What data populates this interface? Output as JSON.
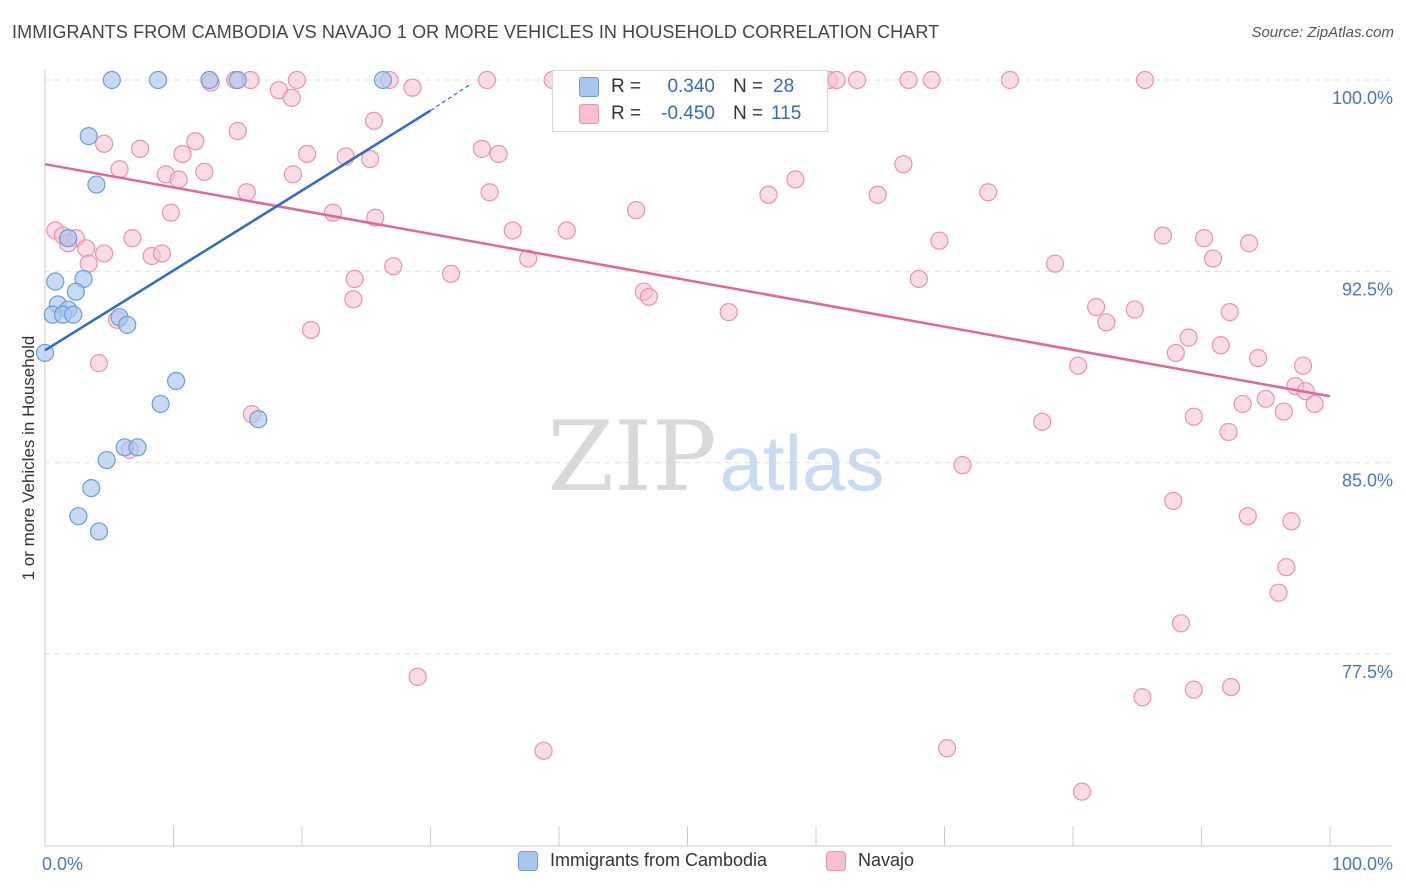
{
  "header": {
    "title": "IMMIGRANTS FROM CAMBODIA VS NAVAJO 1 OR MORE VEHICLES IN HOUSEHOLD CORRELATION CHART",
    "source": "Source: ZipAtlas.com"
  },
  "colors": {
    "blue_fill": "#a9c6ee",
    "blue_stroke": "#6f9bd8",
    "blue_line": "#2f6cc8",
    "pink_fill": "#f7bfd2",
    "pink_stroke": "#e992b1",
    "pink_line": "#e0679a",
    "tick_text": "#4a76c9",
    "grid": "#dddddd"
  },
  "stats": {
    "r_label": "R =",
    "n_label": "N =",
    "series1": {
      "r": "0.340",
      "n": "28"
    },
    "series2": {
      "r": "-0.450",
      "n": "115"
    }
  },
  "watermark": {
    "zip": "ZIP",
    "atlas": "atlas"
  },
  "chart_data": {
    "type": "scatter",
    "title": "IMMIGRANTS FROM CAMBODIA VS NAVAJO 1 OR MORE VEHICLES IN HOUSEHOLD CORRELATION CHART",
    "xlabel": "",
    "ylabel": "1 or more Vehicles in Household",
    "x_unit": "percent",
    "xlim": [
      0,
      100
    ],
    "ylim": [
      70.4,
      101.5
    ],
    "x_tick_labels": [
      "0.0%",
      "100.0%"
    ],
    "y_ticks": [
      100.0,
      92.5,
      85.0,
      77.5
    ],
    "y_tick_labels": [
      "100.0%",
      "92.5%",
      "85.0%",
      "77.5%"
    ],
    "legend": [
      "Immigrants from Cambodia",
      "Navajo"
    ],
    "series": [
      {
        "name": "Immigrants from Cambodia",
        "r": 0.34,
        "n": 28,
        "trend": {
          "x": [
            0,
            30
          ],
          "y": [
            89.4,
            98.8
          ],
          "dashed_to": [
            33,
            99.8
          ]
        },
        "points": [
          [
            5.2,
            100.0
          ],
          [
            8.8,
            100.0
          ],
          [
            12.8,
            100.0
          ],
          [
            15.0,
            100.0
          ],
          [
            26.3,
            100.0
          ],
          [
            3.4,
            97.8
          ],
          [
            4.0,
            95.9
          ],
          [
            1.8,
            93.8
          ],
          [
            0.8,
            92.1
          ],
          [
            3.0,
            92.2
          ],
          [
            2.4,
            91.7
          ],
          [
            1.0,
            91.2
          ],
          [
            1.8,
            91.0
          ],
          [
            0.6,
            90.8
          ],
          [
            1.4,
            90.8
          ],
          [
            2.2,
            90.8
          ],
          [
            5.8,
            90.7
          ],
          [
            6.4,
            90.4
          ],
          [
            0.0,
            89.3
          ],
          [
            10.2,
            88.2
          ],
          [
            9.0,
            87.3
          ],
          [
            16.6,
            86.7
          ],
          [
            6.2,
            85.6
          ],
          [
            7.2,
            85.6
          ],
          [
            4.8,
            85.1
          ],
          [
            3.6,
            84.0
          ],
          [
            2.6,
            82.9
          ],
          [
            4.2,
            82.3
          ]
        ]
      },
      {
        "name": "Navajo",
        "r": -0.45,
        "n": 115,
        "trend": {
          "x": [
            0,
            100
          ],
          "y": [
            96.7,
            87.6
          ]
        },
        "points": [
          [
            14.8,
            100.0
          ],
          [
            16.0,
            100.0
          ],
          [
            19.6,
            100.0
          ],
          [
            26.8,
            100.0
          ],
          [
            34.4,
            100.0
          ],
          [
            39.5,
            100.0
          ],
          [
            40.8,
            100.0
          ],
          [
            41.8,
            100.0
          ],
          [
            45.2,
            100.0
          ],
          [
            53.2,
            100.0
          ],
          [
            56.6,
            100.0
          ],
          [
            57.6,
            100.0
          ],
          [
            61.0,
            100.0
          ],
          [
            61.6,
            100.0
          ],
          [
            63.2,
            100.0
          ],
          [
            67.2,
            100.0
          ],
          [
            69.0,
            100.0
          ],
          [
            75.1,
            100.0
          ],
          [
            85.6,
            100.0
          ],
          [
            12.9,
            99.9
          ],
          [
            28.6,
            99.7
          ],
          [
            18.2,
            99.6
          ],
          [
            19.2,
            99.3
          ],
          [
            25.6,
            98.4
          ],
          [
            15.0,
            98.0
          ],
          [
            11.7,
            97.6
          ],
          [
            4.6,
            97.5
          ],
          [
            7.4,
            97.3
          ],
          [
            34.0,
            97.3
          ],
          [
            10.7,
            97.1
          ],
          [
            20.4,
            97.1
          ],
          [
            35.3,
            97.1
          ],
          [
            23.4,
            97.0
          ],
          [
            25.3,
            96.9
          ],
          [
            66.8,
            96.7
          ],
          [
            5.8,
            96.5
          ],
          [
            12.4,
            96.4
          ],
          [
            9.4,
            96.3
          ],
          [
            19.3,
            96.3
          ],
          [
            58.4,
            96.1
          ],
          [
            10.4,
            96.1
          ],
          [
            15.7,
            95.6
          ],
          [
            34.6,
            95.6
          ],
          [
            56.3,
            95.5
          ],
          [
            64.8,
            95.5
          ],
          [
            73.4,
            95.6
          ],
          [
            9.8,
            94.8
          ],
          [
            22.4,
            94.8
          ],
          [
            46.0,
            94.9
          ],
          [
            25.7,
            94.6
          ],
          [
            0.8,
            94.1
          ],
          [
            36.4,
            94.1
          ],
          [
            40.6,
            94.1
          ],
          [
            69.6,
            93.7
          ],
          [
            87.0,
            93.9
          ],
          [
            1.4,
            93.9
          ],
          [
            2.4,
            93.8
          ],
          [
            6.8,
            93.8
          ],
          [
            4.6,
            93.2
          ],
          [
            1.8,
            93.6
          ],
          [
            3.2,
            93.4
          ],
          [
            90.2,
            93.8
          ],
          [
            93.7,
            93.6
          ],
          [
            8.3,
            93.1
          ],
          [
            9.1,
            93.2
          ],
          [
            37.6,
            93.0
          ],
          [
            90.9,
            93.0
          ],
          [
            3.4,
            92.8
          ],
          [
            27.1,
            92.7
          ],
          [
            78.6,
            92.8
          ],
          [
            31.6,
            92.4
          ],
          [
            24.1,
            92.2
          ],
          [
            68.0,
            92.2
          ],
          [
            46.6,
            91.7
          ],
          [
            47.0,
            91.5
          ],
          [
            24.0,
            91.4
          ],
          [
            81.8,
            91.1
          ],
          [
            84.8,
            91.0
          ],
          [
            53.2,
            90.9
          ],
          [
            92.2,
            90.9
          ],
          [
            5.6,
            90.6
          ],
          [
            82.6,
            90.5
          ],
          [
            20.7,
            90.2
          ],
          [
            89.0,
            89.9
          ],
          [
            91.5,
            89.6
          ],
          [
            88.0,
            89.3
          ],
          [
            94.4,
            89.1
          ],
          [
            4.2,
            88.9
          ],
          [
            80.4,
            88.8
          ],
          [
            97.9,
            88.8
          ],
          [
            97.3,
            88.0
          ],
          [
            98.1,
            87.8
          ],
          [
            95.0,
            87.5
          ],
          [
            93.2,
            87.3
          ],
          [
            98.8,
            87.3
          ],
          [
            96.4,
            87.0
          ],
          [
            16.1,
            86.9
          ],
          [
            89.4,
            86.8
          ],
          [
            77.6,
            86.6
          ],
          [
            92.1,
            86.2
          ],
          [
            6.6,
            85.5
          ],
          [
            71.4,
            84.9
          ],
          [
            87.8,
            83.5
          ],
          [
            93.6,
            82.9
          ],
          [
            97.0,
            82.7
          ],
          [
            96.6,
            80.9
          ],
          [
            96.0,
            79.9
          ],
          [
            88.4,
            78.7
          ],
          [
            29.0,
            76.6
          ],
          [
            92.3,
            76.2
          ],
          [
            89.4,
            76.1
          ],
          [
            85.4,
            75.8
          ],
          [
            70.2,
            73.8
          ],
          [
            38.8,
            73.7
          ],
          [
            80.7,
            72.1
          ]
        ]
      }
    ]
  }
}
